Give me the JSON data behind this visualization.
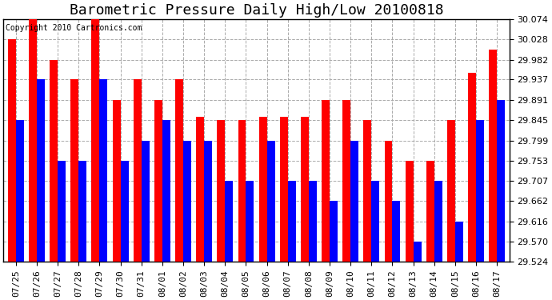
{
  "title": "Barometric Pressure Daily High/Low 20100818",
  "copyright": "Copyright 2010 Cartronics.com",
  "dates": [
    "07/25",
    "07/26",
    "07/27",
    "07/28",
    "07/29",
    "07/30",
    "07/31",
    "08/01",
    "08/02",
    "08/03",
    "08/04",
    "08/05",
    "08/06",
    "08/07",
    "08/08",
    "08/09",
    "08/10",
    "08/11",
    "08/12",
    "08/13",
    "08/14",
    "08/15",
    "08/16",
    "08/17"
  ],
  "highs": [
    30.028,
    30.074,
    29.982,
    29.937,
    30.074,
    29.891,
    29.937,
    29.891,
    29.937,
    29.853,
    29.845,
    29.845,
    29.853,
    29.853,
    29.853,
    29.891,
    29.891,
    29.845,
    29.799,
    29.753,
    29.753,
    29.845,
    29.953,
    30.005
  ],
  "lows": [
    29.845,
    29.937,
    29.753,
    29.753,
    29.937,
    29.753,
    29.799,
    29.845,
    29.799,
    29.799,
    29.707,
    29.707,
    29.799,
    29.707,
    29.707,
    29.662,
    29.799,
    29.707,
    29.662,
    29.57,
    29.707,
    29.616,
    29.845,
    29.891
  ],
  "high_color": "#ff0000",
  "low_color": "#0000ff",
  "bg_color": "#ffffff",
  "plot_bg_color": "#ffffff",
  "grid_color": "#aaaaaa",
  "ylim_min": 29.524,
  "ylim_max": 30.074,
  "yticks": [
    29.524,
    29.57,
    29.616,
    29.662,
    29.707,
    29.753,
    29.799,
    29.845,
    29.891,
    29.937,
    29.982,
    30.028,
    30.074
  ],
  "bar_width": 0.38,
  "title_fontsize": 13,
  "tick_fontsize": 8,
  "copyright_fontsize": 7,
  "figwidth": 6.9,
  "figheight": 3.75,
  "dpi": 100
}
